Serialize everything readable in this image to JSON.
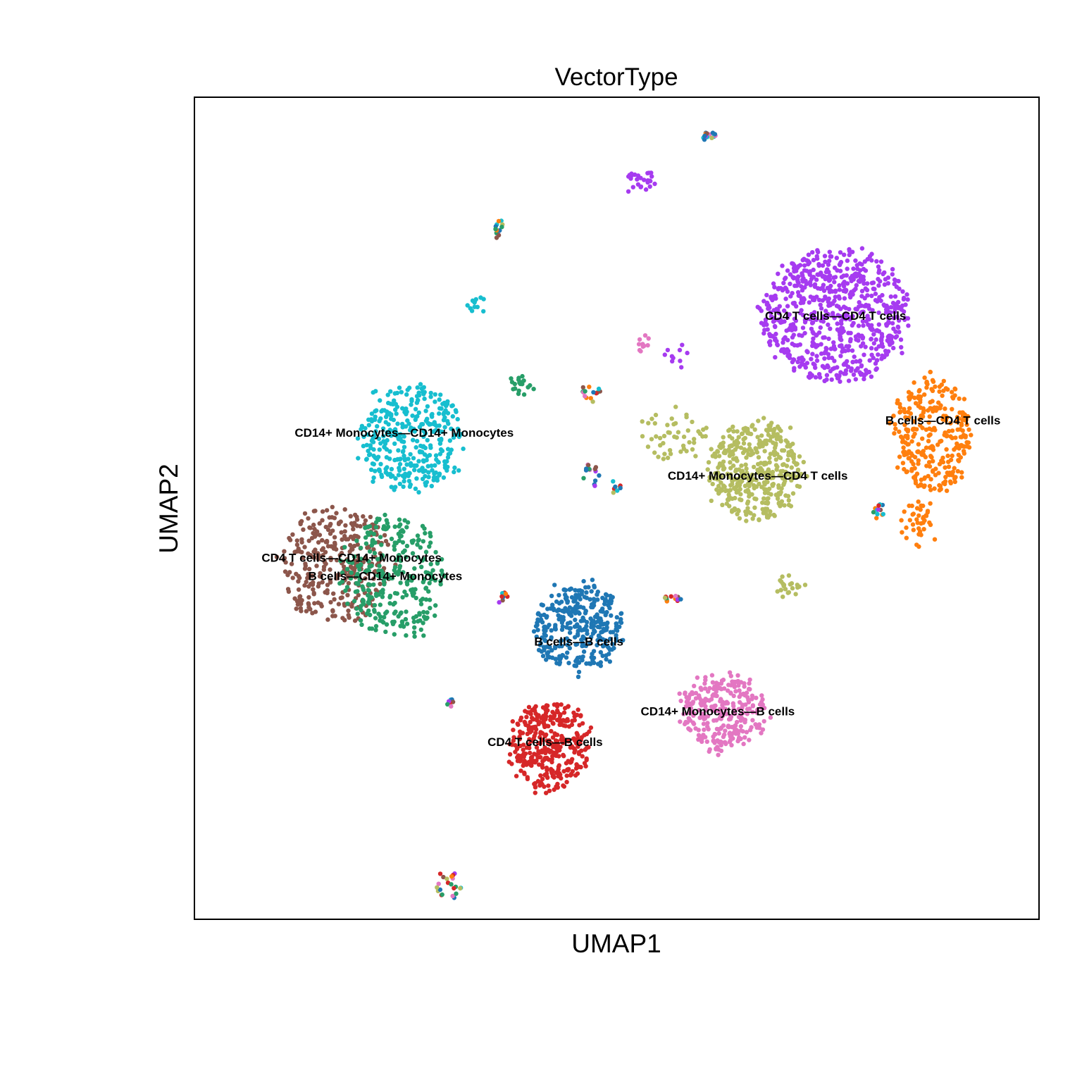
{
  "chart_data": {
    "type": "scatter",
    "title": "VectorType",
    "xlabel": "UMAP1",
    "ylabel": "UMAP2",
    "xlim": [
      -10,
      10
    ],
    "ylim": [
      -10,
      10
    ],
    "grid": false,
    "legend": "none",
    "ticks": "none",
    "series": [
      {
        "name": "CD4 T cells—CD4 T cells",
        "color": "#a63bf0",
        "clusters": [
          {
            "center": [
              5.2,
              4.7
            ],
            "spread": [
              1.75,
              1.6
            ],
            "n": 720
          },
          {
            "center": [
              0.5,
              8.0
            ],
            "spread": [
              0.35,
              0.22
            ],
            "n": 28
          },
          {
            "center": [
              1.4,
              3.7
            ],
            "spread": [
              0.4,
              0.3
            ],
            "n": 10
          }
        ],
        "label_at": [
          5.2,
          4.7
        ]
      },
      {
        "name": "B cells—CD4 T cells",
        "color": "#ff7f0e",
        "clusters": [
          {
            "center": [
              7.5,
              1.8
            ],
            "spread": [
              0.9,
              1.4
            ],
            "n": 300
          },
          {
            "center": [
              7.2,
              -0.4
            ],
            "spread": [
              0.4,
              0.6
            ],
            "n": 40
          }
        ],
        "label_at": [
          7.75,
          2.15
        ]
      },
      {
        "name": "CD14+ Monocytes—CD4 T cells",
        "color": "#b5bd61",
        "clusters": [
          {
            "center": [
              3.3,
              0.9
            ],
            "spread": [
              1.1,
              1.2
            ],
            "n": 420
          },
          {
            "center": [
              4.1,
              -1.9
            ],
            "spread": [
              0.3,
              0.2
            ],
            "n": 22
          },
          {
            "center": [
              1.3,
              1.8
            ],
            "spread": [
              0.8,
              0.6
            ],
            "n": 50
          }
        ],
        "label_at": [
          3.35,
          0.8
        ]
      },
      {
        "name": "CD14+ Monocytes—CD14+ Monocytes",
        "color": "#17becf",
        "clusters": [
          {
            "center": [
              -4.9,
              1.7
            ],
            "spread": [
              1.2,
              1.3
            ],
            "n": 360
          },
          {
            "center": [
              -3.3,
              5.0
            ],
            "spread": [
              0.2,
              0.2
            ],
            "n": 12
          }
        ],
        "label_at": [
          -5.05,
          1.85
        ]
      },
      {
        "name": "CD4 T cells—CD14+ Monocytes",
        "color": "#8c564b",
        "clusters": [
          {
            "center": [
              -6.7,
              -1.4
            ],
            "spread": [
              1.3,
              1.4
            ],
            "n": 330
          }
        ],
        "label_at": [
          -6.3,
          -1.2
        ]
      },
      {
        "name": "B cells—CD14+ Monocytes",
        "color": "#279e68",
        "clusters": [
          {
            "center": [
              -5.3,
              -1.7
            ],
            "spread": [
              1.2,
              1.5
            ],
            "n": 300
          },
          {
            "center": [
              -2.3,
              3.0
            ],
            "spread": [
              0.25,
              0.22
            ],
            "n": 20
          }
        ],
        "label_at": [
          -5.5,
          -1.65
        ]
      },
      {
        "name": "B cells—B cells",
        "color": "#1f77b4",
        "clusters": [
          {
            "center": [
              -0.9,
              -2.9
            ],
            "spread": [
              1.05,
              1.1
            ],
            "n": 330
          }
        ],
        "label_at": [
          -0.9,
          -3.25
        ]
      },
      {
        "name": "CD4 T cells—B cells",
        "color": "#d62728",
        "clusters": [
          {
            "center": [
              -1.6,
              -5.8
            ],
            "spread": [
              0.95,
              1.05
            ],
            "n": 350
          }
        ],
        "label_at": [
          -1.7,
          -5.7
        ]
      },
      {
        "name": "CD14+ Monocytes—B cells",
        "color": "#e377c2",
        "clusters": [
          {
            "center": [
              2.5,
              -5.0
            ],
            "spread": [
              1.0,
              0.9
            ],
            "n": 300
          },
          {
            "center": [
              0.6,
              4.0
            ],
            "spread": [
              0.2,
              0.15
            ],
            "n": 10
          }
        ],
        "label_at": [
          2.4,
          -4.95
        ]
      }
    ],
    "annotations": [
      {
        "text": "CD4 T cells—CD4 T cells",
        "at": [
          5.2,
          4.7
        ]
      },
      {
        "text": "B cells—CD4 T cells",
        "at": [
          7.75,
          2.15
        ]
      },
      {
        "text": "CD14+ Monocytes—CD4 T cells",
        "at": [
          3.35,
          0.8
        ]
      },
      {
        "text": "CD14+ Monocytes—CD14+ Monocytes",
        "at": [
          -5.05,
          1.85
        ]
      },
      {
        "text": "CD4 T cells—CD14+ Monocytes",
        "at": [
          -6.3,
          -1.2
        ]
      },
      {
        "text": "B cells—CD14+ Monocytes",
        "at": [
          -5.5,
          -1.65
        ]
      },
      {
        "text": "B cells—B cells",
        "at": [
          -0.9,
          -3.25
        ]
      },
      {
        "text": "CD4 T cells—B cells",
        "at": [
          -1.7,
          -5.7
        ]
      },
      {
        "text": "CD14+ Monocytes—B cells",
        "at": [
          2.4,
          -4.95
        ]
      }
    ],
    "mixed_islands": [
      {
        "center": [
          -2.8,
          6.8
        ],
        "spread": [
          0.1,
          0.4
        ],
        "n": 14
      },
      {
        "center": [
          2.2,
          9.1
        ],
        "spread": [
          0.15,
          0.2
        ],
        "n": 14
      },
      {
        "center": [
          -4.0,
          -9.2
        ],
        "spread": [
          0.35,
          0.35
        ],
        "n": 22
      },
      {
        "center": [
          -4.0,
          -4.75
        ],
        "spread": [
          0.15,
          0.1
        ],
        "n": 8
      },
      {
        "center": [
          -2.7,
          -2.2
        ],
        "spread": [
          0.2,
          0.15
        ],
        "n": 8
      },
      {
        "center": [
          -0.6,
          2.8
        ],
        "spread": [
          0.3,
          0.2
        ],
        "n": 14
      },
      {
        "center": [
          -0.6,
          0.8
        ],
        "spread": [
          0.2,
          0.3
        ],
        "n": 14
      },
      {
        "center": [
          1.3,
          -2.2
        ],
        "spread": [
          0.25,
          0.1
        ],
        "n": 12
      },
      {
        "center": [
          6.25,
          -0.1
        ],
        "spread": [
          0.15,
          0.2
        ],
        "n": 12
      },
      {
        "center": [
          0.0,
          0.5
        ],
        "spread": [
          0.15,
          0.2
        ],
        "n": 8
      }
    ]
  }
}
